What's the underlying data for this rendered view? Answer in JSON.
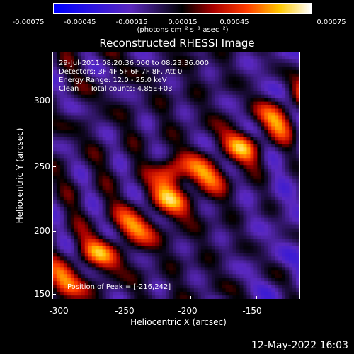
{
  "colorbar": {
    "ticks": [
      "-0.00075",
      "-0.00045",
      "-0.00015",
      "0.00015",
      "0.00045",
      "0.00075"
    ],
    "unit": "(photons cm⁻² s⁻¹ asec⁻²)"
  },
  "title": "Reconstructed RHESSI Image",
  "info": {
    "time": "29-Jul-2011 08:20:36.000 to 08:23:36.000",
    "detectors": "Detectors: 3F 4F 5F 6F 7F 8F, Att 0",
    "energy": "Energy Range: 12.0 - 25.0 keV",
    "clean": "Clean     Total counts: 4.85E+03"
  },
  "peak": "Position of Peak = [-216,242]",
  "x_axis": {
    "label": "Heliocentric X (arcsec)",
    "ticks": [
      "-300",
      "-250",
      "-200",
      "-150"
    ]
  },
  "y_axis": {
    "label": "Heliocentric Y (arcsec)",
    "ticks": [
      "300",
      "250",
      "200",
      "150"
    ]
  },
  "footer": "12-May-2022 16:03",
  "colors": {
    "background": "#000000",
    "text": "#ffffff"
  }
}
